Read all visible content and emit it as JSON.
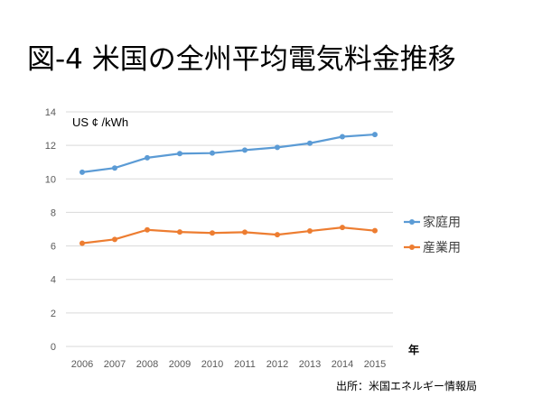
{
  "title": "図-4 米国の全州平均電気料金推移",
  "source": "出所：米国エネルギー情報局",
  "chart_data": {
    "type": "line",
    "title": "図-4 米国の全州平均電気料金推移",
    "ylabel": "US ¢ /kWh",
    "xlabel": "年",
    "ylim": [
      0,
      14
    ],
    "yticks": [
      0,
      2,
      4,
      6,
      8,
      10,
      12,
      14
    ],
    "grid": true,
    "legend_position": "right",
    "categories": [
      "2006",
      "2007",
      "2008",
      "2009",
      "2010",
      "2011",
      "2012",
      "2013",
      "2014",
      "2015"
    ],
    "series": [
      {
        "name": "家庭用",
        "color": "#5b9bd5",
        "values": [
          10.4,
          10.65,
          11.26,
          11.51,
          11.54,
          11.72,
          11.88,
          12.13,
          12.52,
          12.65
        ]
      },
      {
        "name": "産業用",
        "color": "#ed7d31",
        "values": [
          6.16,
          6.39,
          6.96,
          6.83,
          6.77,
          6.82,
          6.67,
          6.89,
          7.1,
          6.91
        ]
      }
    ]
  }
}
